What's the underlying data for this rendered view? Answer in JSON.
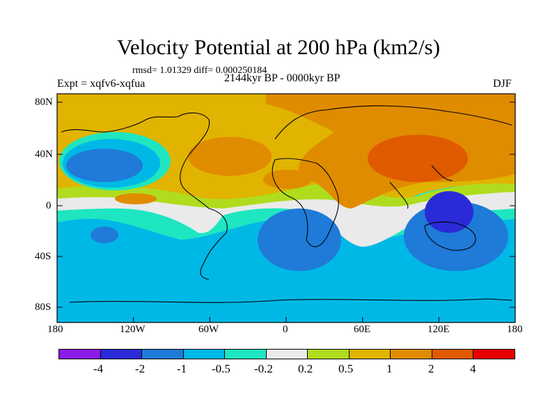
{
  "figure": {
    "title": "Velocity Potential at 200 hPa (km2/s)",
    "stats": "rmsd= 1.01329 diff= 0.000250184",
    "experiment": "Expt = xqfv6-xqfua",
    "period": "2144kyr BP - 0000kyr BP",
    "season": "DJF"
  },
  "axes": {
    "y_ticks": [
      "80N",
      "40N",
      "0",
      "40S",
      "80S"
    ],
    "x_ticks": [
      "180",
      "120W",
      "60W",
      "0",
      "60E",
      "120E",
      "180"
    ]
  },
  "colorbar": {
    "colors": [
      "#8c1ae6",
      "#2a2ad8",
      "#1f7ad8",
      "#00b8e6",
      "#1ee6c0",
      "#eaeaea",
      "#b0dc1e",
      "#e0b400",
      "#e08c00",
      "#e05a00",
      "#e60000"
    ],
    "labels": [
      "-4",
      "-2",
      "-1",
      "-0.5",
      "-0.2",
      "0.2",
      "0.5",
      "1",
      "2",
      "4"
    ]
  },
  "chart_data": {
    "type": "heatmap",
    "title": "Velocity Potential at 200 hPa (km2/s)",
    "projection": "cylindrical equidistant",
    "xlim": [
      -180,
      180
    ],
    "ylim": [
      -90,
      90
    ],
    "contour_levels": [
      -4,
      -2,
      -1,
      -0.5,
      -0.2,
      0.2,
      0.5,
      1,
      2,
      4
    ],
    "features": [
      {
        "region": "North Pacific",
        "level_range": [
          -2,
          -1
        ]
      },
      {
        "region": "North Atlantic",
        "level_range": [
          1,
          2
        ]
      },
      {
        "region": "East Asia / Japan",
        "level_range": [
          2,
          4
        ]
      },
      {
        "region": "Maritime Continent / N Australia",
        "level_range": [
          -4,
          -2
        ]
      },
      {
        "region": "Southern Ocean",
        "level_range": [
          -1,
          -0.5
        ]
      },
      {
        "region": "South Atlantic / Africa",
        "level_range": [
          -2,
          -1
        ]
      }
    ]
  }
}
